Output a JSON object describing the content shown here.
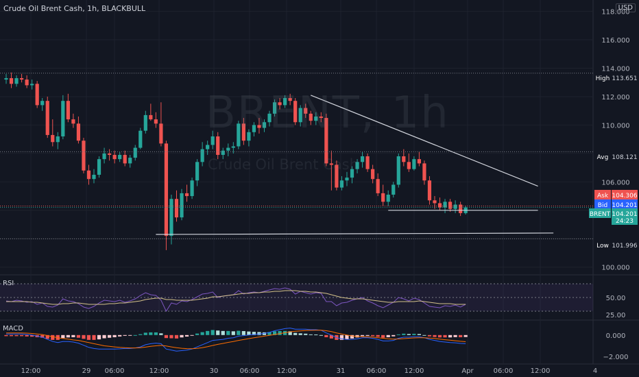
{
  "header": {
    "title": "Crude Oil Brent Cash, 1h, BLACKBULL",
    "currency": "USD"
  },
  "watermark": {
    "ticker": "BRENT, 1h",
    "name": "Crude Oil Brent Cash"
  },
  "colors": {
    "up": "#26a69a",
    "down": "#ef5350",
    "bg": "#131722",
    "grid": "#1e222d",
    "rsi": "#7e57c2"
  },
  "chart_data": [
    {
      "type": "candlestick",
      "name": "price",
      "y_axis": {
        "ylim": [
          99.6,
          118.8
        ],
        "ticks": [
          100.0,
          102.0,
          104.0,
          106.0,
          108.0,
          110.0,
          112.0,
          114.0,
          116.0,
          118.0
        ],
        "tick_labels": [
          "100.000",
          "",
          "",
          "106.000",
          "",
          "110.000",
          "112.000",
          "114.000",
          "116.000",
          "118.000"
        ]
      },
      "x_axis": {
        "labels": [
          "12:00",
          "29",
          "06:00",
          "12:00",
          "30",
          "06:00",
          "12:00",
          "31",
          "06:00",
          "12:00",
          "Apr",
          "06:00",
          "12:00",
          "4"
        ]
      },
      "ohlc": [
        [
          113.2,
          113.6,
          112.9,
          113.3
        ],
        [
          113.3,
          113.7,
          112.6,
          112.9
        ],
        [
          112.9,
          113.5,
          112.7,
          113.3
        ],
        [
          113.3,
          113.6,
          113.0,
          113.2
        ],
        [
          113.2,
          113.5,
          112.6,
          112.8
        ],
        [
          112.8,
          113.2,
          112.5,
          112.9
        ],
        [
          112.9,
          113.1,
          111.2,
          111.4
        ],
        [
          111.4,
          111.9,
          111.0,
          111.7
        ],
        [
          111.7,
          112.0,
          109.1,
          109.3
        ],
        [
          109.3,
          110.4,
          108.5,
          108.8
        ],
        [
          108.8,
          109.5,
          108.3,
          109.2
        ],
        [
          109.2,
          112.1,
          109.0,
          111.7
        ],
        [
          111.7,
          112.2,
          110.2,
          110.4
        ],
        [
          110.4,
          110.8,
          109.8,
          110.1
        ],
        [
          110.1,
          110.6,
          108.7,
          108.9
        ],
        [
          108.9,
          109.1,
          106.6,
          106.8
        ],
        [
          106.8,
          107.2,
          105.8,
          106.2
        ],
        [
          106.2,
          106.9,
          105.9,
          106.5
        ],
        [
          106.5,
          107.8,
          106.3,
          107.6
        ],
        [
          107.6,
          108.4,
          107.3,
          108.0
        ],
        [
          108.0,
          108.3,
          107.5,
          107.9
        ],
        [
          107.9,
          108.2,
          107.3,
          107.6
        ],
        [
          107.6,
          108.1,
          107.4,
          107.9
        ],
        [
          107.9,
          108.2,
          107.1,
          107.3
        ],
        [
          107.3,
          107.9,
          107.0,
          107.7
        ],
        [
          107.7,
          108.6,
          107.5,
          108.4
        ],
        [
          108.4,
          109.8,
          108.3,
          109.6
        ],
        [
          109.6,
          111.0,
          109.4,
          110.7
        ],
        [
          110.7,
          111.5,
          110.3,
          110.4
        ],
        [
          110.4,
          110.9,
          109.8,
          110.1
        ],
        [
          110.1,
          111.6,
          108.5,
          108.7
        ],
        [
          108.7,
          108.9,
          101.2,
          102.2
        ],
        [
          102.2,
          105.1,
          101.6,
          104.8
        ],
        [
          104.8,
          105.4,
          103.2,
          103.5
        ],
        [
          103.5,
          105.5,
          103.3,
          105.2
        ],
        [
          105.2,
          105.8,
          104.6,
          105.0
        ],
        [
          105.0,
          106.3,
          104.8,
          106.1
        ],
        [
          106.1,
          107.6,
          105.7,
          107.4
        ],
        [
          107.4,
          108.8,
          107.1,
          108.3
        ],
        [
          108.3,
          108.9,
          107.9,
          108.6
        ],
        [
          108.6,
          109.6,
          108.3,
          109.2
        ],
        [
          109.2,
          109.5,
          107.6,
          107.9
        ],
        [
          107.9,
          108.4,
          107.6,
          108.2
        ],
        [
          108.2,
          108.7,
          107.8,
          108.4
        ],
        [
          108.4,
          108.8,
          108.0,
          108.5
        ],
        [
          108.5,
          110.3,
          108.3,
          110.1
        ],
        [
          110.1,
          110.5,
          108.6,
          108.9
        ],
        [
          108.9,
          109.7,
          108.5,
          109.5
        ],
        [
          109.5,
          110.2,
          109.2,
          110.0
        ],
        [
          110.0,
          110.5,
          109.4,
          109.8
        ],
        [
          109.8,
          110.4,
          109.5,
          110.2
        ],
        [
          110.2,
          111.0,
          109.9,
          110.8
        ],
        [
          110.8,
          111.8,
          110.6,
          111.6
        ],
        [
          111.6,
          111.9,
          111.1,
          111.4
        ],
        [
          111.4,
          112.1,
          111.2,
          111.9
        ],
        [
          111.9,
          112.2,
          111.4,
          111.7
        ],
        [
          111.7,
          111.9,
          110.0,
          110.2
        ],
        [
          110.2,
          111.4,
          109.9,
          111.2
        ],
        [
          111.2,
          111.5,
          110.5,
          110.8
        ],
        [
          110.8,
          111.0,
          110.0,
          110.3
        ],
        [
          110.3,
          110.9,
          110.0,
          110.6
        ],
        [
          110.6,
          110.9,
          110.2,
          110.5
        ],
        [
          110.5,
          110.8,
          107.1,
          107.3
        ],
        [
          107.3,
          108.2,
          105.4,
          107.2
        ],
        [
          107.2,
          107.5,
          105.4,
          105.6
        ],
        [
          105.6,
          106.4,
          105.4,
          106.1
        ],
        [
          106.1,
          106.7,
          105.7,
          106.3
        ],
        [
          106.3,
          107.1,
          105.9,
          106.9
        ],
        [
          106.9,
          107.6,
          106.6,
          107.4
        ],
        [
          107.4,
          108.1,
          107.0,
          107.8
        ],
        [
          107.8,
          108.0,
          106.7,
          106.9
        ],
        [
          106.9,
          107.2,
          105.9,
          106.2
        ],
        [
          106.2,
          106.6,
          105.0,
          105.2
        ],
        [
          105.2,
          105.8,
          104.3,
          104.6
        ],
        [
          104.6,
          105.4,
          104.3,
          105.1
        ],
        [
          105.1,
          106.0,
          104.9,
          105.8
        ],
        [
          105.8,
          108.0,
          105.6,
          107.8
        ],
        [
          107.8,
          108.3,
          107.1,
          107.4
        ],
        [
          107.4,
          108.0,
          106.7,
          106.9
        ],
        [
          106.9,
          107.8,
          106.8,
          107.6
        ],
        [
          107.6,
          108.1,
          107.1,
          107.3
        ],
        [
          107.3,
          107.5,
          105.8,
          106.1
        ],
        [
          106.1,
          106.4,
          104.4,
          104.7
        ],
        [
          104.7,
          105.0,
          104.1,
          104.5
        ],
        [
          104.5,
          104.9,
          104.0,
          104.2
        ],
        [
          104.2,
          104.8,
          103.8,
          104.6
        ],
        [
          104.6,
          104.8,
          103.9,
          104.1
        ],
        [
          104.1,
          104.7,
          103.8,
          104.4
        ],
        [
          104.4,
          104.6,
          103.6,
          103.8
        ],
        [
          103.8,
          104.3,
          103.7,
          104.2
        ]
      ],
      "annotations": {
        "high": {
          "label": "High",
          "value": "113.651",
          "y": 113.651
        },
        "avg": {
          "label": "Avg",
          "value": "108.121",
          "y": 108.121
        },
        "ask": {
          "label": "Ask",
          "value": "104.306",
          "y": 104.306
        },
        "bid": {
          "label": "Bid",
          "value": "104.201",
          "y": 104.201
        },
        "last": {
          "label": "BRENT",
          "value": "104.201",
          "countdown": "24:23",
          "y": 104.201
        },
        "low": {
          "label": "Low",
          "value": "101.996",
          "y": 101.996
        }
      },
      "trendlines": [
        {
          "from": [
            59,
            112.1
          ],
          "to": [
            103,
            105.7
          ]
        },
        {
          "from": [
            74,
            104.0
          ],
          "to": [
            103,
            104.0
          ]
        },
        {
          "from": [
            29,
            102.3
          ],
          "to": [
            106,
            102.4
          ]
        }
      ]
    },
    {
      "type": "line",
      "name": "RSI",
      "label": "RSI",
      "ylim": [
        20,
        80
      ],
      "ticks": [
        25.0,
        50.0
      ],
      "tick_labels": [
        "25.00",
        "50.00"
      ],
      "rsi": [
        45,
        44,
        46,
        45,
        43,
        44,
        40,
        42,
        37,
        36,
        39,
        48,
        45,
        44,
        41,
        36,
        34,
        37,
        42,
        46,
        45,
        44,
        46,
        43,
        45,
        48,
        53,
        57,
        54,
        53,
        46,
        30,
        42,
        40,
        45,
        44,
        47,
        51,
        55,
        56,
        58,
        50,
        52,
        53,
        54,
        60,
        55,
        57,
        58,
        57,
        59,
        61,
        63,
        62,
        64,
        62,
        55,
        59,
        57,
        55,
        57,
        56,
        44,
        44,
        38,
        42,
        43,
        46,
        48,
        50,
        45,
        42,
        38,
        35,
        39,
        43,
        50,
        48,
        45,
        49,
        47,
        42,
        37,
        36,
        35,
        38,
        37,
        39,
        36,
        40
      ],
      "signal": [
        44,
        44,
        44,
        44,
        44,
        43,
        43,
        42,
        41,
        40,
        40,
        41,
        41,
        42,
        42,
        41,
        40,
        40,
        40,
        40,
        41,
        41,
        42,
        42,
        43,
        44,
        45,
        47,
        48,
        49,
        49,
        47,
        47,
        46,
        46,
        46,
        46,
        47,
        48,
        49,
        51,
        51,
        52,
        53,
        54,
        55,
        56,
        56,
        57,
        57,
        58,
        58,
        59,
        59,
        60,
        60,
        60,
        59,
        59,
        58,
        58,
        57,
        56,
        54,
        52,
        50,
        49,
        48,
        48,
        48,
        47,
        46,
        45,
        44,
        43,
        43,
        44,
        44,
        44,
        44,
        45,
        44,
        43,
        42,
        41,
        41,
        41,
        40,
        40,
        40
      ]
    },
    {
      "type": "bar",
      "name": "MACD",
      "label": "MACD",
      "ylim": [
        -2.5,
        1.2
      ],
      "ticks": [
        0.0,
        -2.0
      ],
      "tick_labels": [
        "0.000",
        "−2.000"
      ],
      "macd": [
        0.1,
        0.1,
        0.1,
        0.1,
        0.05,
        0.0,
        -0.1,
        -0.2,
        -0.4,
        -0.6,
        -0.7,
        -0.6,
        -0.6,
        -0.65,
        -0.75,
        -0.95,
        -1.15,
        -1.25,
        -1.3,
        -1.3,
        -1.3,
        -1.3,
        -1.28,
        -1.25,
        -1.25,
        -1.2,
        -1.1,
        -0.9,
        -0.8,
        -0.75,
        -0.8,
        -1.3,
        -1.4,
        -1.5,
        -1.45,
        -1.4,
        -1.3,
        -1.1,
        -0.9,
        -0.7,
        -0.5,
        -0.45,
        -0.4,
        -0.3,
        -0.25,
        -0.1,
        -0.05,
        0.0,
        0.05,
        0.1,
        0.15,
        0.25,
        0.4,
        0.5,
        0.6,
        0.65,
        0.55,
        0.55,
        0.55,
        0.5,
        0.5,
        0.45,
        0.2,
        0.0,
        -0.25,
        -0.35,
        -0.4,
        -0.4,
        -0.35,
        -0.25,
        -0.25,
        -0.3,
        -0.4,
        -0.55,
        -0.55,
        -0.5,
        -0.3,
        -0.2,
        -0.2,
        -0.15,
        -0.15,
        -0.25,
        -0.4,
        -0.5,
        -0.6,
        -0.65,
        -0.7,
        -0.72,
        -0.78,
        -0.8
      ],
      "signal": [
        0.2,
        0.2,
        0.2,
        0.2,
        0.18,
        0.15,
        0.1,
        0.05,
        -0.05,
        -0.15,
        -0.25,
        -0.32,
        -0.38,
        -0.45,
        -0.5,
        -0.6,
        -0.7,
        -0.8,
        -0.9,
        -1.0,
        -1.05,
        -1.1,
        -1.15,
        -1.18,
        -1.2,
        -1.2,
        -1.18,
        -1.12,
        -1.05,
        -1.0,
        -0.96,
        -1.02,
        -1.1,
        -1.18,
        -1.23,
        -1.26,
        -1.27,
        -1.24,
        -1.17,
        -1.08,
        -0.97,
        -0.87,
        -0.78,
        -0.68,
        -0.6,
        -0.5,
        -0.42,
        -0.33,
        -0.25,
        -0.18,
        -0.1,
        -0.03,
        0.05,
        0.13,
        0.22,
        0.3,
        0.35,
        0.39,
        0.42,
        0.44,
        0.45,
        0.45,
        0.4,
        0.32,
        0.2,
        0.1,
        0.0,
        -0.08,
        -0.13,
        -0.15,
        -0.17,
        -0.2,
        -0.24,
        -0.3,
        -0.35,
        -0.38,
        -0.36,
        -0.33,
        -0.3,
        -0.27,
        -0.25,
        -0.25,
        -0.28,
        -0.32,
        -0.38,
        -0.43,
        -0.48,
        -0.53,
        -0.58,
        -0.62
      ]
    }
  ]
}
